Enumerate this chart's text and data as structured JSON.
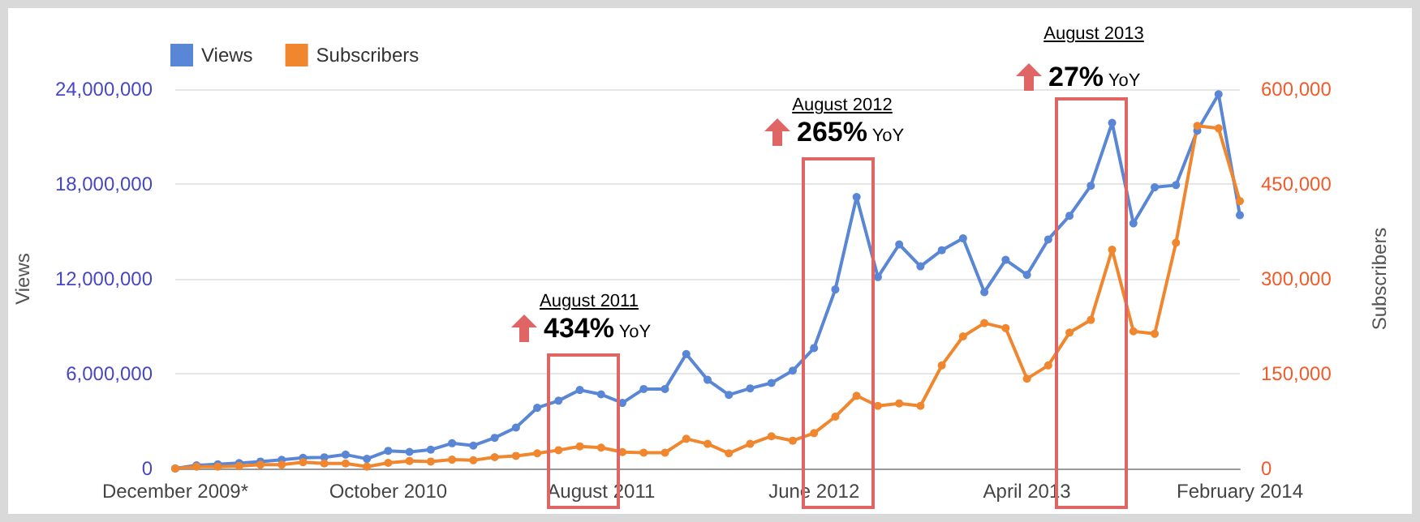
{
  "chart_data": {
    "type": "line",
    "xlabel": null,
    "ylabel": "Views",
    "y2label": "Subscribers",
    "categories": [
      "December 2009*",
      null,
      null,
      null,
      null,
      null,
      null,
      null,
      null,
      null,
      "October 2010",
      null,
      null,
      null,
      null,
      null,
      null,
      null,
      null,
      null,
      "August 2011",
      null,
      null,
      null,
      null,
      null,
      null,
      null,
      null,
      null,
      "June 2012",
      null,
      null,
      null,
      null,
      null,
      null,
      null,
      null,
      null,
      "April 2013",
      null,
      null,
      null,
      null,
      null,
      null,
      null,
      null,
      null,
      "February 2014"
    ],
    "series": [
      {
        "name": "Views",
        "color": "#5a87d5",
        "values": [
          0,
          200000,
          270000,
          340000,
          440000,
          550000,
          680000,
          710000,
          880000,
          610000,
          1120000,
          1050000,
          1190000,
          1600000,
          1450000,
          1940000,
          2590000,
          3840000,
          4290000,
          4970000,
          4690000,
          4150000,
          5030000,
          5030000,
          7240000,
          5610000,
          4660000,
          5070000,
          5410000,
          6190000,
          7620000,
          11330000,
          17180000,
          12110000,
          14180000,
          12790000,
          13810000,
          14560000,
          11160000,
          13200000,
          12250000,
          14490000,
          15990000,
          17890000,
          21870000,
          15510000,
          17790000,
          17930000,
          21370000,
          23680000,
          16030000
        ]
      },
      {
        "name": "Subscribers",
        "color": "#f0872e",
        "axis": "y2",
        "values": [
          0,
          3000,
          3000,
          4000,
          6000,
          6000,
          10000,
          8000,
          8000,
          3000,
          9000,
          12000,
          11000,
          14000,
          13000,
          18000,
          20000,
          24000,
          29000,
          35000,
          33000,
          26000,
          25000,
          25000,
          47000,
          39000,
          24000,
          39000,
          51000,
          44000,
          56000,
          82000,
          115000,
          99000,
          103000,
          99000,
          163000,
          209000,
          230000,
          222000,
          142000,
          163000,
          215000,
          235000,
          346000,
          217000,
          213000,
          357000,
          542000,
          538000,
          423000
        ]
      }
    ],
    "ylim": [
      0,
      24000000
    ],
    "yticks": [
      {
        "value": 0,
        "label": "0"
      },
      {
        "value": 6000000,
        "label": "6,000,000"
      },
      {
        "value": 12000000,
        "label": "12,000,000"
      },
      {
        "value": 18000000,
        "label": "18,000,000"
      },
      {
        "value": 24000000,
        "label": "24,000,000"
      }
    ],
    "y2lim": [
      0,
      600000
    ],
    "y2ticks": [
      {
        "value": 0,
        "label": "0"
      },
      {
        "value": 150000,
        "label": "150,000"
      },
      {
        "value": 300000,
        "label": "300,000"
      },
      {
        "value": 450000,
        "label": "450,000"
      },
      {
        "value": 600000,
        "label": "600,000"
      }
    ],
    "annotations": [
      "August 2011",
      "434% YoY",
      "August 2012",
      "265% YoY",
      "August 2013",
      "27% YoY"
    ],
    "grid": "y",
    "legend": "top left",
    "marker": "circle",
    "line_style": "solid"
  }
}
